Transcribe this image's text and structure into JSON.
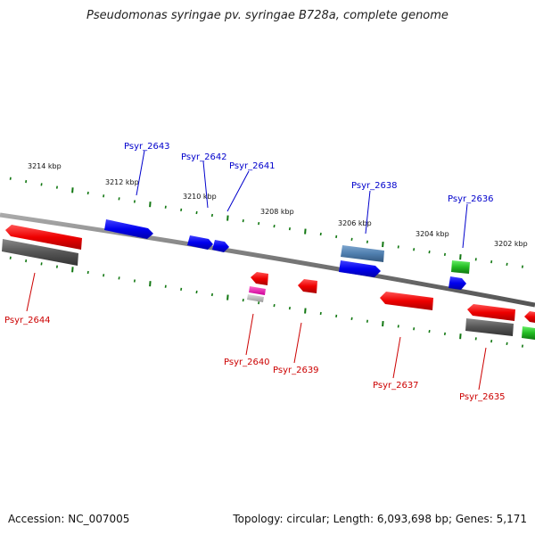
{
  "title": "Pseudomonas syringae pv. syringae B728a, complete genome",
  "footer": {
    "accession": "Accession: NC_007005",
    "summary": "Topology: circular; Length: 6,093,698 bp; Genes: 5,171"
  },
  "ticks": [
    {
      "label": "3214 kbp"
    },
    {
      "label": "3212 kbp"
    },
    {
      "label": "3210 kbp"
    },
    {
      "label": "3208 kbp"
    },
    {
      "label": "3206 kbp"
    },
    {
      "label": "3204 kbp"
    },
    {
      "label": "3202 kbp"
    }
  ],
  "genes_top": [
    {
      "name": "Psyr_2643"
    },
    {
      "name": "Psyr_2642"
    },
    {
      "name": "Psyr_2641"
    },
    {
      "name": "Psyr_2638"
    },
    {
      "name": "Psyr_2636"
    }
  ],
  "genes_bottom": [
    {
      "name": "Psyr_2644"
    },
    {
      "name": "Psyr_2640"
    },
    {
      "name": "Psyr_2639"
    },
    {
      "name": "Psyr_2637"
    },
    {
      "name": "Psyr_2635"
    }
  ],
  "colors": {
    "forward_gene": "#0000ee",
    "reverse_gene": "#ee0000",
    "pseudo_gene": "#555555",
    "rna_gene": "#22bb22",
    "tick": "#117711",
    "backbone": "#777777"
  }
}
